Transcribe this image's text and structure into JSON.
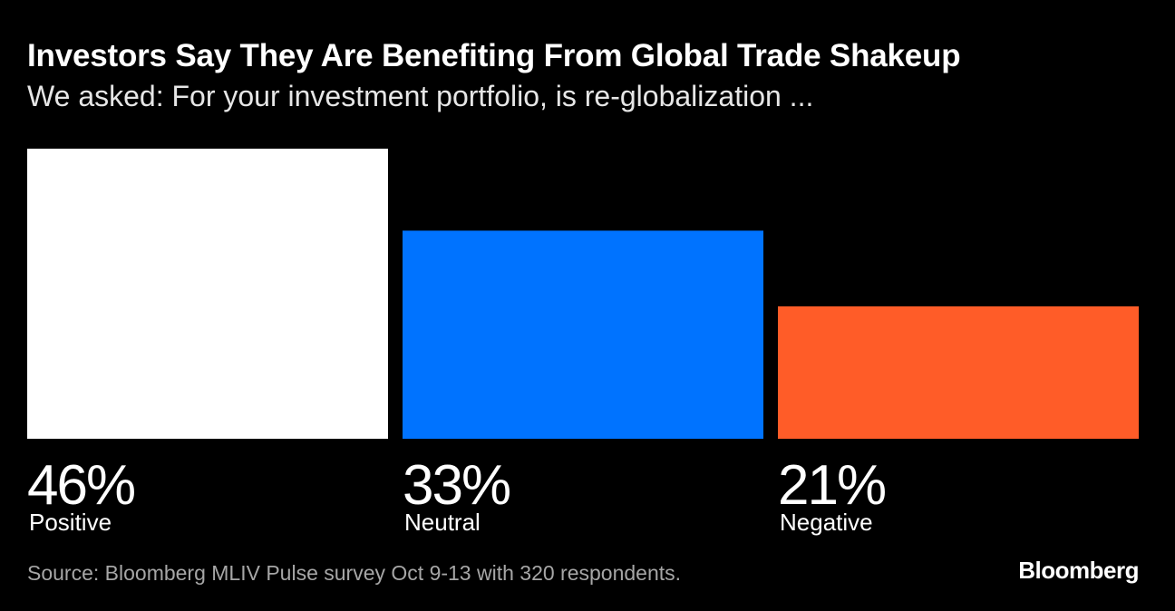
{
  "title": "Investors Say They Are Benefiting From Global Trade Shakeup",
  "subtitle": "We asked: For your investment portfolio, is re-globalization ...",
  "source": "Source: Bloomberg MLIV Pulse survey Oct 9-13 with 320 respondents.",
  "brand": "Bloomberg",
  "chart_data": {
    "type": "bar",
    "title": "Investors Say They Are Benefiting From Global Trade Shakeup",
    "xlabel": "",
    "ylabel": "",
    "ylim": [
      0,
      46
    ],
    "categories": [
      "Positive",
      "Neutral",
      "Negative"
    ],
    "values": [
      46,
      33,
      21
    ],
    "value_labels": [
      "46%",
      "33%",
      "21%"
    ],
    "colors": [
      "#ffffff",
      "#0073ff",
      "#ff5c28"
    ]
  }
}
